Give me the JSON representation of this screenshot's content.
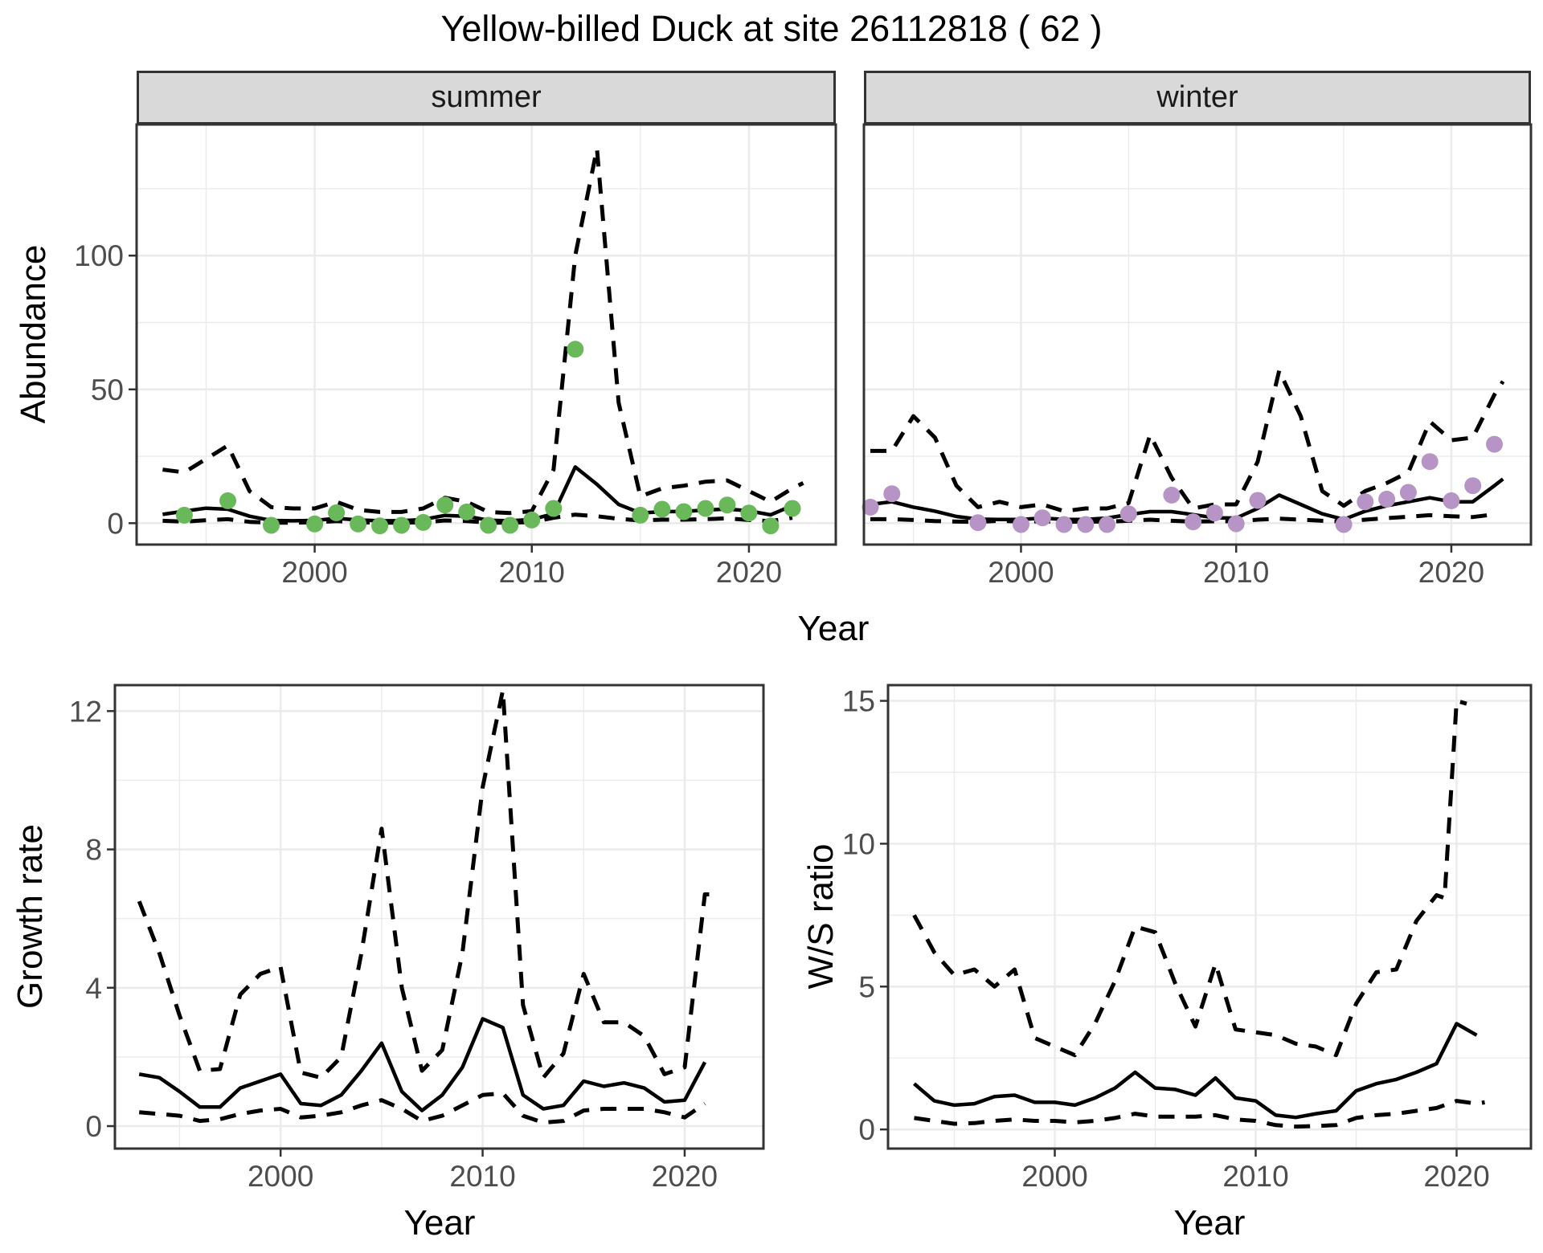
{
  "figure": {
    "title": "Yellow-billed Duck at site 26112818 ( 62 )",
    "colors": {
      "summer_points": "#69b95a",
      "winter_points": "#b794c6",
      "line": "#000000",
      "grid": "#ebebeb",
      "strip_bg": "#d9d9d9",
      "border": "#333333",
      "tick_text": "#4d4d4d"
    }
  },
  "top_row": {
    "facets": [
      {
        "label": "summer"
      },
      {
        "label": "winter"
      }
    ],
    "ylabel": "Abundance",
    "xlabel": "Year"
  },
  "bottom_row": {
    "left": {
      "ylabel": "Growth rate",
      "xlabel": "Year"
    },
    "right": {
      "ylabel": "W/S ratio",
      "xlabel": "Year"
    }
  },
  "chart_data": [
    {
      "id": "abundance_summer",
      "type": "line",
      "facet": "summer",
      "ylabel": "Abundance",
      "xlabel": "Year",
      "xlim": [
        1991.8,
        2024.0
      ],
      "ylim": [
        -8,
        149
      ],
      "xticks": [
        2000,
        2010,
        2020
      ],
      "xminor": [
        1995,
        2005,
        2015
      ],
      "yticks": [
        0,
        50,
        100
      ],
      "yminor": [
        25,
        75,
        125
      ],
      "show_y_tick_labels": true,
      "legend": "none",
      "grid": true,
      "series": [
        {
          "name": "upper_ci",
          "style": "dashed",
          "x": [
            1993,
            1994,
            1995,
            1996,
            1997,
            1998,
            1999,
            2000,
            2001,
            2002,
            2003,
            2004,
            2005,
            2006,
            2007,
            2008,
            2009,
            2010,
            2011,
            2012,
            2013,
            2014,
            2015,
            2016,
            2017,
            2018,
            2019,
            2020,
            2021,
            2022,
            2022.5
          ],
          "y": [
            20,
            19,
            24,
            29,
            12,
            6,
            5.5,
            5.5,
            8,
            5,
            4.2,
            4.2,
            5.5,
            9.5,
            8,
            4.2,
            3.8,
            4.5,
            20,
            100,
            140,
            45,
            10,
            13,
            14,
            15.5,
            16,
            12,
            8,
            13,
            15
          ]
        },
        {
          "name": "lower_ci",
          "style": "dashed",
          "x": [
            1993,
            1994,
            1995,
            1996,
            1997,
            1998,
            1999,
            2000,
            2001,
            2002,
            2003,
            2004,
            2005,
            2006,
            2007,
            2008,
            2009,
            2010,
            2011,
            2012,
            2013,
            2014,
            2015,
            2016,
            2017,
            2018,
            2019,
            2020,
            2021,
            2022
          ],
          "y": [
            0.9,
            0.6,
            1.1,
            1.5,
            0.5,
            0.2,
            0.2,
            0.3,
            0.8,
            0.3,
            0.2,
            0.2,
            0.3,
            1.0,
            0.8,
            0.2,
            0.2,
            0.4,
            2.0,
            3.2,
            2.6,
            1.6,
            1.0,
            1.3,
            1.3,
            1.5,
            1.8,
            1.2,
            0.8,
            2.0
          ]
        },
        {
          "name": "median",
          "style": "solid",
          "x": [
            1993,
            1994,
            1995,
            1996,
            1997,
            1998,
            1999,
            2000,
            2001,
            2002,
            2003,
            2004,
            2005,
            2006,
            2007,
            2008,
            2009,
            2010,
            2011,
            2012,
            2013,
            2014,
            2015,
            2016,
            2017,
            2018,
            2019,
            2020,
            2021,
            2022
          ],
          "y": [
            3.3,
            4.5,
            5.6,
            5.2,
            2.6,
            1.0,
            0.9,
            1.0,
            1.8,
            1.2,
            0.9,
            0.9,
            1.4,
            2.9,
            2.6,
            1.1,
            0.9,
            1.4,
            3.5,
            21,
            14.5,
            7,
            3.8,
            4.3,
            4.4,
            4.9,
            5.3,
            4.6,
            3.1,
            6.6
          ]
        }
      ],
      "points": {
        "name": "summer_observations",
        "color": "#69b95a",
        "x": [
          1994,
          1996,
          1998,
          2000,
          2001,
          2002,
          2003,
          2004,
          2005,
          2006,
          2007,
          2008,
          2009,
          2010,
          2011,
          2012,
          2015,
          2016,
          2017,
          2018,
          2019,
          2020,
          2021,
          2022
        ],
        "y": [
          3.0,
          8.4,
          -0.8,
          -0.3,
          3.9,
          -0.3,
          -1.0,
          -0.8,
          0.3,
          6.8,
          4.2,
          -0.8,
          -0.8,
          1.2,
          5.5,
          65,
          3.0,
          5.2,
          4.3,
          5.5,
          6.8,
          3.8,
          -1.0,
          5.5
        ]
      }
    },
    {
      "id": "abundance_winter",
      "type": "line",
      "facet": "winter",
      "ylabel": "Abundance",
      "xlabel": "Year",
      "xlim": [
        1992.7,
        2023.7
      ],
      "ylim": [
        -8,
        149
      ],
      "xticks": [
        2000,
        2010,
        2020
      ],
      "xminor": [
        1995,
        2005,
        2015
      ],
      "yticks": [
        0,
        50,
        100
      ],
      "yminor": [
        25,
        75,
        125
      ],
      "show_y_tick_labels": false,
      "legend": "none",
      "grid": true,
      "series": [
        {
          "name": "upper_ci",
          "style": "dashed",
          "x": [
            1993,
            1994,
            1995,
            1996,
            1997,
            1998,
            1999,
            2000,
            2001,
            2002,
            2003,
            2004,
            2005,
            2006,
            2007,
            2008,
            2009,
            2010,
            2011,
            2012,
            2013,
            2014,
            2015,
            2016,
            2017,
            2018,
            2019,
            2020,
            2021,
            2022,
            2022.4
          ],
          "y": [
            27,
            27,
            40,
            32,
            14,
            6,
            8,
            6,
            7,
            4.5,
            5.5,
            5.5,
            7.5,
            33,
            17,
            5.5,
            7,
            7,
            23,
            57,
            40,
            12,
            6.5,
            12,
            15,
            19,
            38,
            31,
            32,
            48,
            53
          ]
        },
        {
          "name": "lower_ci",
          "style": "dashed",
          "x": [
            1993,
            1994,
            1995,
            1996,
            1997,
            1998,
            1999,
            2000,
            2001,
            2002,
            2003,
            2004,
            2005,
            2006,
            2007,
            2008,
            2009,
            2010,
            2011,
            2012,
            2013,
            2014,
            2015,
            2016,
            2017,
            2018,
            2019,
            2020,
            2021,
            2022
          ],
          "y": [
            1.5,
            1.5,
            1.2,
            0.8,
            0.6,
            0.5,
            0.9,
            0.6,
            0.7,
            0.5,
            0.6,
            0.6,
            0.9,
            1.3,
            0.9,
            0.6,
            0.7,
            0.7,
            1.3,
            1.7,
            1.3,
            0.9,
            0.6,
            1.3,
            1.9,
            2.4,
            3.0,
            2.6,
            2.3,
            3.3
          ]
        },
        {
          "name": "median",
          "style": "solid",
          "x": [
            1993,
            1994,
            1995,
            1996,
            1997,
            1998,
            1999,
            2000,
            2001,
            2002,
            2003,
            2004,
            2005,
            2006,
            2007,
            2008,
            2009,
            2010,
            2011,
            2012,
            2013,
            2014,
            2015,
            2016,
            2017,
            2018,
            2019,
            2020,
            2021,
            2022,
            2022.4
          ],
          "y": [
            7.0,
            8.0,
            6.0,
            4.5,
            2.5,
            1.5,
            1.4,
            1.4,
            1.9,
            1.4,
            1.4,
            1.9,
            3.2,
            4.3,
            4.3,
            3.2,
            2.0,
            1.9,
            5.5,
            10.5,
            7.0,
            3.5,
            1.4,
            4.5,
            6.5,
            8.0,
            9.5,
            8.0,
            8.0,
            14.0,
            16.5
          ]
        }
      ],
      "points": {
        "name": "winter_observations",
        "color": "#b794c6",
        "x": [
          1993,
          1994,
          1998,
          2000,
          2001,
          2002,
          2003,
          2004,
          2005,
          2007,
          2008,
          2009,
          2010,
          2011,
          2015,
          2016,
          2017,
          2018,
          2019,
          2020,
          2021,
          2022
        ],
        "y": [
          6.0,
          11.0,
          0.2,
          -0.5,
          2.0,
          -0.5,
          -0.5,
          -0.5,
          3.5,
          10.5,
          0.5,
          3.8,
          -0.2,
          8.5,
          -0.5,
          8.0,
          9.0,
          11.5,
          23.0,
          8.4,
          14.0,
          29.5
        ]
      }
    },
    {
      "id": "growth",
      "type": "line",
      "facet": null,
      "ylabel": "Growth rate",
      "xlabel": "Year",
      "xlim": [
        1991.8,
        2023.9
      ],
      "ylim": [
        -0.65,
        12.75
      ],
      "xticks": [
        2000,
        2010,
        2020
      ],
      "xminor": [
        1995,
        2005,
        2015
      ],
      "yticks": [
        0,
        4,
        8,
        12
      ],
      "yminor": [
        2,
        6,
        10
      ],
      "show_y_tick_labels": true,
      "legend": "none",
      "grid": true,
      "series": [
        {
          "name": "upper_ci",
          "style": "dashed",
          "x": [
            1993,
            1994,
            1995,
            1996,
            1997,
            1998,
            1999,
            2000,
            2001,
            2002,
            2003,
            2004,
            2005,
            2006,
            2007,
            2008,
            2009,
            2010,
            2011,
            2012,
            2013,
            2014,
            2015,
            2016,
            2017,
            2018,
            2019,
            2020,
            2021,
            2021.3
          ],
          "y": [
            6.5,
            5.0,
            3.2,
            1.6,
            1.65,
            3.8,
            4.4,
            4.6,
            1.55,
            1.4,
            2.0,
            5.0,
            8.6,
            4.0,
            1.6,
            2.2,
            5.0,
            9.8,
            12.6,
            3.5,
            1.4,
            2.1,
            4.4,
            3.0,
            3.0,
            2.6,
            1.5,
            1.7,
            6.7,
            6.7
          ]
        },
        {
          "name": "lower_ci",
          "style": "dashed",
          "x": [
            1993,
            1994,
            1995,
            1996,
            1997,
            1998,
            1999,
            2000,
            2001,
            2002,
            2003,
            2004,
            2005,
            2006,
            2007,
            2008,
            2009,
            2010,
            2011,
            2012,
            2013,
            2014,
            2015,
            2016,
            2017,
            2018,
            2019,
            2020,
            2021
          ],
          "y": [
            0.4,
            0.35,
            0.3,
            0.15,
            0.2,
            0.35,
            0.45,
            0.5,
            0.25,
            0.3,
            0.4,
            0.6,
            0.75,
            0.5,
            0.15,
            0.3,
            0.6,
            0.9,
            0.95,
            0.3,
            0.1,
            0.15,
            0.45,
            0.5,
            0.5,
            0.5,
            0.4,
            0.25,
            0.65
          ]
        },
        {
          "name": "median",
          "style": "solid",
          "x": [
            1993,
            1994,
            1995,
            1996,
            1997,
            1998,
            1999,
            2000,
            2001,
            2002,
            2003,
            2004,
            2005,
            2006,
            2007,
            2008,
            2009,
            2010,
            2011,
            2012,
            2013,
            2014,
            2015,
            2016,
            2017,
            2018,
            2019,
            2020,
            2021
          ],
          "y": [
            1.5,
            1.4,
            1.0,
            0.55,
            0.55,
            1.1,
            1.3,
            1.5,
            0.65,
            0.6,
            0.9,
            1.6,
            2.4,
            1.0,
            0.45,
            0.9,
            1.7,
            3.1,
            2.85,
            0.9,
            0.5,
            0.6,
            1.3,
            1.15,
            1.25,
            1.1,
            0.7,
            0.75,
            1.85
          ]
        }
      ],
      "points": null
    },
    {
      "id": "ws",
      "type": "line",
      "facet": null,
      "ylabel": "W/S ratio",
      "xlabel": "Year",
      "xlim": [
        1991.7,
        2023.7
      ],
      "ylim": [
        -0.67,
        15.55
      ],
      "xticks": [
        2000,
        2010,
        2020
      ],
      "xminor": [
        1995,
        2005,
        2015
      ],
      "yticks": [
        0,
        5,
        10,
        15
      ],
      "yminor": [
        2.5,
        7.5,
        12.5
      ],
      "show_y_tick_labels": true,
      "legend": "none",
      "grid": true,
      "series": [
        {
          "name": "upper_ci",
          "style": "dashed",
          "x": [
            1993,
            1994,
            1995,
            1996,
            1997,
            1998,
            1999,
            2000,
            2001,
            2002,
            2003,
            2004,
            2005,
            2006,
            2007,
            2008,
            2009,
            2010,
            2011,
            2012,
            2013,
            2014,
            2015,
            2016,
            2017,
            2018,
            2019,
            2019.4,
            2020,
            2020.5
          ],
          "y": [
            7.5,
            6.2,
            5.4,
            5.6,
            5.0,
            5.6,
            3.2,
            2.9,
            2.6,
            3.7,
            5.2,
            7.1,
            6.9,
            5.1,
            3.6,
            5.8,
            3.5,
            3.4,
            3.3,
            3.0,
            2.9,
            2.6,
            4.4,
            5.5,
            5.6,
            7.3,
            8.2,
            8.1,
            15.0,
            14.9
          ]
        },
        {
          "name": "lower_ci",
          "style": "dashed",
          "x": [
            1993,
            1994,
            1995,
            1996,
            1997,
            1998,
            1999,
            2000,
            2001,
            2002,
            2003,
            2004,
            2005,
            2006,
            2007,
            2008,
            2009,
            2010,
            2011,
            2012,
            2013,
            2014,
            2015,
            2016,
            2017,
            2018,
            2019,
            2020,
            2021,
            2021.4
          ],
          "y": [
            0.4,
            0.3,
            0.2,
            0.22,
            0.3,
            0.35,
            0.3,
            0.3,
            0.25,
            0.3,
            0.4,
            0.55,
            0.45,
            0.45,
            0.45,
            0.5,
            0.35,
            0.3,
            0.15,
            0.1,
            0.12,
            0.15,
            0.4,
            0.5,
            0.55,
            0.65,
            0.75,
            1.0,
            0.9,
            0.95
          ]
        },
        {
          "name": "median",
          "style": "solid",
          "x": [
            1993,
            1994,
            1995,
            1996,
            1997,
            1998,
            1999,
            2000,
            2001,
            2002,
            2003,
            2004,
            2005,
            2006,
            2007,
            2008,
            2009,
            2010,
            2011,
            2012,
            2013,
            2014,
            2015,
            2016,
            2017,
            2018,
            2019,
            2020,
            2021
          ],
          "y": [
            1.6,
            1.0,
            0.85,
            0.9,
            1.15,
            1.2,
            0.95,
            0.95,
            0.85,
            1.1,
            1.45,
            2.0,
            1.45,
            1.4,
            1.2,
            1.8,
            1.1,
            1.0,
            0.5,
            0.42,
            0.55,
            0.65,
            1.35,
            1.6,
            1.75,
            2.0,
            2.3,
            3.7,
            3.3
          ]
        }
      ],
      "points": null
    }
  ]
}
